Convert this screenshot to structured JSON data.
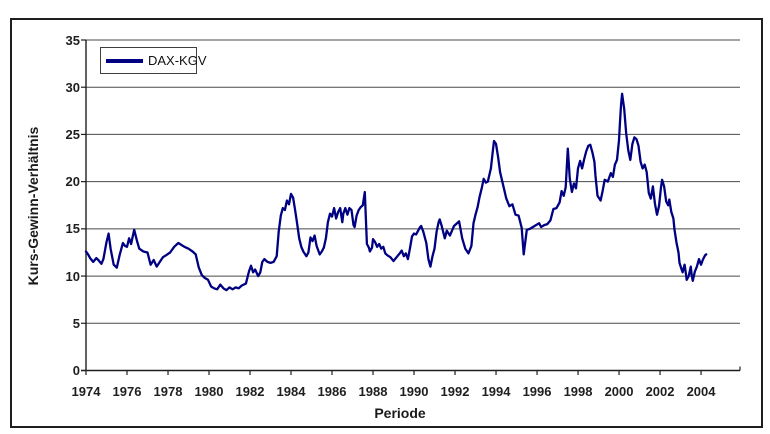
{
  "figure": {
    "background": "#ffffff",
    "border_color": "#1f1f1f"
  },
  "legend": {
    "label": "DAX-KGV"
  },
  "axes": {
    "x_title": "Periode",
    "y_title": "Kurs-Gewinn-Verhältnis"
  },
  "colors": {
    "line": "#000082",
    "grid": "#4a4a4a",
    "axis": "#1f1f1f",
    "text": "#1f1f1f"
  },
  "chart_data": {
    "type": "line",
    "title": "",
    "xlabel": "Periode",
    "ylabel": "Kurs-Gewinn-Verhältnis",
    "legend_position": "top-left",
    "grid": "horizontal",
    "xlim": [
      1974,
      2005.9
    ],
    "ylim": [
      0,
      35
    ],
    "x_ticks": [
      1974,
      1976,
      1978,
      1980,
      1982,
      1984,
      1986,
      1988,
      1990,
      1992,
      1994,
      1996,
      1998,
      2000,
      2002,
      2004
    ],
    "y_ticks": [
      0,
      5,
      10,
      15,
      20,
      25,
      30,
      35
    ],
    "series": [
      {
        "name": "DAX-KGV",
        "color": "#000082",
        "points": [
          [
            1974.0,
            12.6
          ],
          [
            1974.1,
            12.3
          ],
          [
            1974.2,
            11.9
          ],
          [
            1974.35,
            11.5
          ],
          [
            1974.5,
            11.9
          ],
          [
            1974.6,
            11.7
          ],
          [
            1974.75,
            11.3
          ],
          [
            1974.85,
            11.8
          ],
          [
            1975.0,
            13.6
          ],
          [
            1975.1,
            14.5
          ],
          [
            1975.2,
            12.9
          ],
          [
            1975.35,
            11.2
          ],
          [
            1975.5,
            10.9
          ],
          [
            1975.65,
            12.3
          ],
          [
            1975.8,
            13.5
          ],
          [
            1975.9,
            13.2
          ],
          [
            1976.0,
            13.1
          ],
          [
            1976.1,
            14.0
          ],
          [
            1976.2,
            13.4
          ],
          [
            1976.35,
            14.9
          ],
          [
            1976.5,
            13.6
          ],
          [
            1976.6,
            12.9
          ],
          [
            1976.8,
            12.6
          ],
          [
            1977.0,
            12.5
          ],
          [
            1977.15,
            11.2
          ],
          [
            1977.3,
            11.7
          ],
          [
            1977.45,
            11.0
          ],
          [
            1977.6,
            11.5
          ],
          [
            1977.75,
            12.0
          ],
          [
            1977.9,
            12.2
          ],
          [
            1978.1,
            12.5
          ],
          [
            1978.3,
            13.1
          ],
          [
            1978.5,
            13.5
          ],
          [
            1978.65,
            13.3
          ],
          [
            1978.8,
            13.1
          ],
          [
            1979.0,
            12.9
          ],
          [
            1979.2,
            12.6
          ],
          [
            1979.35,
            12.3
          ],
          [
            1979.5,
            10.9
          ],
          [
            1979.65,
            10.1
          ],
          [
            1979.8,
            9.8
          ],
          [
            1979.95,
            9.6
          ],
          [
            1980.1,
            8.9
          ],
          [
            1980.25,
            8.7
          ],
          [
            1980.4,
            8.6
          ],
          [
            1980.55,
            9.1
          ],
          [
            1980.7,
            8.7
          ],
          [
            1980.85,
            8.5
          ],
          [
            1981.0,
            8.8
          ],
          [
            1981.15,
            8.6
          ],
          [
            1981.3,
            8.8
          ],
          [
            1981.45,
            8.7
          ],
          [
            1981.6,
            9.0
          ],
          [
            1981.8,
            9.2
          ],
          [
            1981.95,
            10.5
          ],
          [
            1982.05,
            11.1
          ],
          [
            1982.15,
            10.4
          ],
          [
            1982.25,
            10.7
          ],
          [
            1982.4,
            10.0
          ],
          [
            1982.5,
            10.4
          ],
          [
            1982.6,
            11.5
          ],
          [
            1982.7,
            11.8
          ],
          [
            1982.85,
            11.5
          ],
          [
            1983.0,
            11.4
          ],
          [
            1983.15,
            11.5
          ],
          [
            1983.3,
            12.1
          ],
          [
            1983.4,
            14.7
          ],
          [
            1983.5,
            16.4
          ],
          [
            1983.6,
            17.2
          ],
          [
            1983.7,
            17.0
          ],
          [
            1983.8,
            18.0
          ],
          [
            1983.9,
            17.6
          ],
          [
            1984.0,
            18.7
          ],
          [
            1984.1,
            18.3
          ],
          [
            1984.2,
            17.0
          ],
          [
            1984.3,
            15.5
          ],
          [
            1984.4,
            14.0
          ],
          [
            1984.5,
            13.1
          ],
          [
            1984.6,
            12.6
          ],
          [
            1984.75,
            12.1
          ],
          [
            1984.85,
            12.5
          ],
          [
            1984.95,
            14.1
          ],
          [
            1985.05,
            13.7
          ],
          [
            1985.15,
            14.3
          ],
          [
            1985.25,
            13.2
          ],
          [
            1985.4,
            12.3
          ],
          [
            1985.5,
            12.6
          ],
          [
            1985.6,
            13.0
          ],
          [
            1985.7,
            14.0
          ],
          [
            1985.8,
            15.7
          ],
          [
            1985.9,
            16.6
          ],
          [
            1986.0,
            16.3
          ],
          [
            1986.1,
            17.2
          ],
          [
            1986.2,
            16.1
          ],
          [
            1986.3,
            16.8
          ],
          [
            1986.4,
            17.2
          ],
          [
            1986.5,
            15.7
          ],
          [
            1986.55,
            16.6
          ],
          [
            1986.65,
            17.2
          ],
          [
            1986.75,
            16.5
          ],
          [
            1986.85,
            17.2
          ],
          [
            1986.95,
            17.0
          ],
          [
            1987.05,
            15.4
          ],
          [
            1987.1,
            15.2
          ],
          [
            1987.2,
            16.4
          ],
          [
            1987.3,
            17.0
          ],
          [
            1987.4,
            17.3
          ],
          [
            1987.5,
            17.5
          ],
          [
            1987.6,
            18.9
          ],
          [
            1987.7,
            13.4
          ],
          [
            1987.8,
            13.0
          ],
          [
            1987.85,
            12.6
          ],
          [
            1987.95,
            13.0
          ],
          [
            1988.0,
            13.9
          ],
          [
            1988.1,
            13.6
          ],
          [
            1988.2,
            13.1
          ],
          [
            1988.3,
            13.4
          ],
          [
            1988.4,
            12.9
          ],
          [
            1988.5,
            13.1
          ],
          [
            1988.6,
            12.4
          ],
          [
            1988.7,
            12.2
          ],
          [
            1988.85,
            12.0
          ],
          [
            1989.0,
            11.6
          ],
          [
            1989.15,
            12.0
          ],
          [
            1989.3,
            12.4
          ],
          [
            1989.4,
            12.7
          ],
          [
            1989.5,
            12.1
          ],
          [
            1989.6,
            12.4
          ],
          [
            1989.7,
            11.8
          ],
          [
            1989.8,
            12.9
          ],
          [
            1989.9,
            14.2
          ],
          [
            1990.0,
            14.5
          ],
          [
            1990.1,
            14.4
          ],
          [
            1990.2,
            14.8
          ],
          [
            1990.3,
            15.2
          ],
          [
            1990.35,
            15.3
          ],
          [
            1990.45,
            14.7
          ],
          [
            1990.6,
            13.5
          ],
          [
            1990.7,
            11.8
          ],
          [
            1990.8,
            11.0
          ],
          [
            1990.9,
            12.1
          ],
          [
            1991.0,
            12.9
          ],
          [
            1991.1,
            14.7
          ],
          [
            1991.2,
            15.7
          ],
          [
            1991.25,
            16.0
          ],
          [
            1991.35,
            15.3
          ],
          [
            1991.5,
            14.0
          ],
          [
            1991.6,
            14.8
          ],
          [
            1991.75,
            14.3
          ],
          [
            1991.85,
            14.8
          ],
          [
            1991.95,
            15.3
          ],
          [
            1992.05,
            15.5
          ],
          [
            1992.2,
            15.8
          ],
          [
            1992.35,
            14.0
          ],
          [
            1992.5,
            12.9
          ],
          [
            1992.65,
            12.4
          ],
          [
            1992.8,
            13.2
          ],
          [
            1992.9,
            15.6
          ],
          [
            1993.0,
            16.5
          ],
          [
            1993.1,
            17.3
          ],
          [
            1993.2,
            18.4
          ],
          [
            1993.3,
            19.3
          ],
          [
            1993.4,
            20.3
          ],
          [
            1993.5,
            19.9
          ],
          [
            1993.6,
            20.0
          ],
          [
            1993.75,
            21.4
          ],
          [
            1993.85,
            23.4
          ],
          [
            1993.9,
            24.3
          ],
          [
            1994.0,
            24.0
          ],
          [
            1994.1,
            22.6
          ],
          [
            1994.2,
            21.0
          ],
          [
            1994.35,
            19.6
          ],
          [
            1994.5,
            18.2
          ],
          [
            1994.65,
            17.4
          ],
          [
            1994.8,
            17.6
          ],
          [
            1994.95,
            16.5
          ],
          [
            1995.1,
            16.4
          ],
          [
            1995.25,
            15.1
          ],
          [
            1995.35,
            12.3
          ],
          [
            1995.5,
            14.9
          ],
          [
            1995.65,
            15.0
          ],
          [
            1995.8,
            15.2
          ],
          [
            1995.95,
            15.4
          ],
          [
            1996.1,
            15.6
          ],
          [
            1996.2,
            15.2
          ],
          [
            1996.35,
            15.4
          ],
          [
            1996.5,
            15.5
          ],
          [
            1996.65,
            15.9
          ],
          [
            1996.8,
            17.1
          ],
          [
            1996.95,
            17.2
          ],
          [
            1997.1,
            17.8
          ],
          [
            1997.2,
            19.0
          ],
          [
            1997.3,
            18.5
          ],
          [
            1997.4,
            19.4
          ],
          [
            1997.5,
            23.5
          ],
          [
            1997.6,
            20.3
          ],
          [
            1997.7,
            18.9
          ],
          [
            1997.8,
            19.8
          ],
          [
            1997.9,
            19.3
          ],
          [
            1998.0,
            21.4
          ],
          [
            1998.1,
            22.2
          ],
          [
            1998.2,
            21.4
          ],
          [
            1998.3,
            22.4
          ],
          [
            1998.4,
            23.2
          ],
          [
            1998.5,
            23.8
          ],
          [
            1998.6,
            23.9
          ],
          [
            1998.7,
            23.1
          ],
          [
            1998.8,
            22.1
          ],
          [
            1998.85,
            20.6
          ],
          [
            1998.95,
            18.5
          ],
          [
            1999.1,
            18.0
          ],
          [
            1999.2,
            19.0
          ],
          [
            1999.3,
            20.2
          ],
          [
            1999.45,
            20.0
          ],
          [
            1999.6,
            20.9
          ],
          [
            1999.7,
            20.5
          ],
          [
            1999.8,
            21.8
          ],
          [
            1999.9,
            22.3
          ],
          [
            2000.0,
            24.4
          ],
          [
            2000.05,
            26.5
          ],
          [
            2000.1,
            28.2
          ],
          [
            2000.15,
            29.3
          ],
          [
            2000.25,
            27.7
          ],
          [
            2000.35,
            25.1
          ],
          [
            2000.45,
            23.3
          ],
          [
            2000.55,
            22.3
          ],
          [
            2000.65,
            24.0
          ],
          [
            2000.75,
            24.7
          ],
          [
            2000.85,
            24.5
          ],
          [
            2000.95,
            23.8
          ],
          [
            2001.05,
            22.1
          ],
          [
            2001.15,
            21.4
          ],
          [
            2001.25,
            21.8
          ],
          [
            2001.35,
            21.0
          ],
          [
            2001.45,
            18.8
          ],
          [
            2001.55,
            18.2
          ],
          [
            2001.65,
            19.5
          ],
          [
            2001.75,
            17.7
          ],
          [
            2001.85,
            16.5
          ],
          [
            2001.95,
            17.4
          ],
          [
            2002.05,
            19.5
          ],
          [
            2002.1,
            20.2
          ],
          [
            2002.2,
            19.5
          ],
          [
            2002.3,
            17.9
          ],
          [
            2002.4,
            17.5
          ],
          [
            2002.45,
            18.1
          ],
          [
            2002.55,
            16.8
          ],
          [
            2002.65,
            16.1
          ],
          [
            2002.7,
            15.0
          ],
          [
            2002.8,
            13.6
          ],
          [
            2002.9,
            12.5
          ],
          [
            2002.95,
            11.4
          ],
          [
            2003.05,
            10.7
          ],
          [
            2003.1,
            10.4
          ],
          [
            2003.2,
            11.2
          ],
          [
            2003.25,
            10.4
          ],
          [
            2003.3,
            9.6
          ],
          [
            2003.4,
            10.0
          ],
          [
            2003.5,
            11.0
          ],
          [
            2003.55,
            10.0
          ],
          [
            2003.6,
            9.5
          ],
          [
            2003.7,
            10.5
          ],
          [
            2003.8,
            11.0
          ],
          [
            2003.9,
            11.8
          ],
          [
            2004.0,
            11.2
          ],
          [
            2004.1,
            11.8
          ],
          [
            2004.2,
            12.2
          ],
          [
            2004.25,
            12.3
          ]
        ]
      }
    ]
  }
}
